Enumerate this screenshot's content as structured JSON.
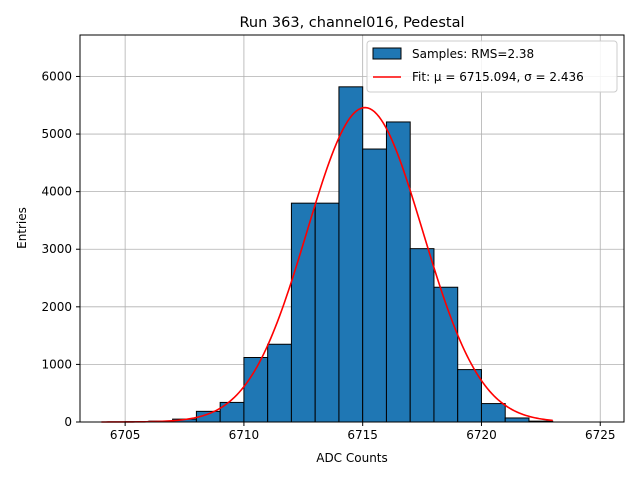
{
  "chart_data": {
    "type": "bar",
    "title": "Run 363, channel016, Pedestal",
    "xlabel": "ADC Counts",
    "ylabel": "Entries",
    "xlim": [
      6703.1,
      6726
    ],
    "ylim": [
      0,
      6720
    ],
    "xticks": [
      6705,
      6710,
      6715,
      6720,
      6725
    ],
    "yticks": [
      0,
      1000,
      2000,
      3000,
      4000,
      5000,
      6000
    ],
    "grid": true,
    "legend_position": "top-right",
    "bin_width": 1,
    "bins": [
      {
        "x0": 6704,
        "value": 0
      },
      {
        "x0": 6705,
        "value": 5
      },
      {
        "x0": 6706,
        "value": 15
      },
      {
        "x0": 6707,
        "value": 50
      },
      {
        "x0": 6708,
        "value": 185
      },
      {
        "x0": 6709,
        "value": 340
      },
      {
        "x0": 6710,
        "value": 1120
      },
      {
        "x0": 6711,
        "value": 1350
      },
      {
        "x0": 6712,
        "value": 3800
      },
      {
        "x0": 6713,
        "value": 3800
      },
      {
        "x0": 6714,
        "value": 5820
      },
      {
        "x0": 6715,
        "value": 4740
      },
      {
        "x0": 6716,
        "value": 5210
      },
      {
        "x0": 6717,
        "value": 3010
      },
      {
        "x0": 6718,
        "value": 2340
      },
      {
        "x0": 6719,
        "value": 910
      },
      {
        "x0": 6720,
        "value": 320
      },
      {
        "x0": 6721,
        "value": 70
      },
      {
        "x0": 6722,
        "value": 15
      }
    ],
    "fit": {
      "mu": 6715.094,
      "sigma": 2.436,
      "amplitude": 5460,
      "x_range": [
        6704,
        6723
      ]
    },
    "series": [
      {
        "name": "Samples: RMS=2.38",
        "kind": "histogram",
        "color": "#1f77b4"
      },
      {
        "name": "Fit: μ = 6715.094, σ = 2.436",
        "kind": "line",
        "color": "#ff0000"
      }
    ]
  }
}
